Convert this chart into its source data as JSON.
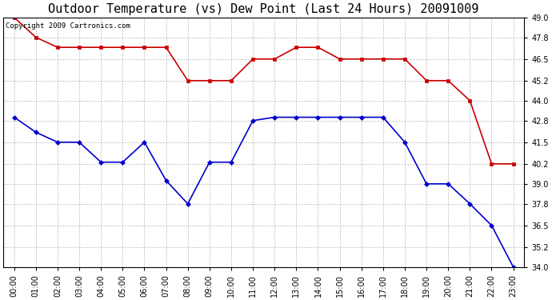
{
  "title": "Outdoor Temperature (vs) Dew Point (Last 24 Hours) 20091009",
  "copyright": "Copyright 2009 Cartronics.com",
  "x_labels": [
    "00:00",
    "01:00",
    "02:00",
    "03:00",
    "04:00",
    "05:00",
    "06:00",
    "07:00",
    "08:00",
    "09:00",
    "10:00",
    "11:00",
    "12:00",
    "13:00",
    "14:00",
    "15:00",
    "16:00",
    "17:00",
    "18:00",
    "19:00",
    "20:00",
    "21:00",
    "22:00",
    "23:00"
  ],
  "temp_red": [
    49.0,
    47.8,
    47.2,
    47.2,
    47.2,
    47.2,
    47.2,
    47.2,
    45.2,
    45.2,
    45.2,
    46.5,
    46.5,
    47.2,
    47.2,
    46.5,
    46.5,
    46.5,
    46.5,
    45.2,
    45.2,
    44.0,
    40.2,
    40.2
  ],
  "temp_blue": [
    43.0,
    42.1,
    41.5,
    41.5,
    40.3,
    40.3,
    41.5,
    39.2,
    37.8,
    40.3,
    40.3,
    42.8,
    43.0,
    43.0,
    43.0,
    43.0,
    43.0,
    43.0,
    41.5,
    39.0,
    39.0,
    37.8,
    36.5,
    34.0
  ],
  "ylim_min": 34.0,
  "ylim_max": 49.0,
  "yticks": [
    34.0,
    35.2,
    36.5,
    37.8,
    39.0,
    40.2,
    41.5,
    42.8,
    44.0,
    45.2,
    46.5,
    47.8,
    49.0
  ],
  "red_color": "#cc0000",
  "blue_color": "#0000cc",
  "bg_color": "#ffffff",
  "plot_bg_color": "#ffffff",
  "grid_color": "#bbbbbb",
  "title_fontsize": 11,
  "tick_fontsize": 7,
  "copyright_fontsize": 6.5
}
